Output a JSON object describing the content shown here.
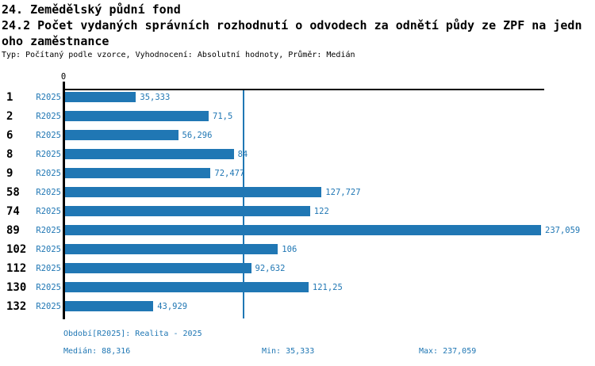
{
  "header": {
    "title_line1": "24. Zemědělský půdní fond",
    "title_line2": "24.2 Počet vydaných správních rozhodnutí o odvodech za odnětí půdy ze ZPF na jedn",
    "title_line3": "oho zaměstnance",
    "subtitle": "Typ: Počítaný podle vzorce, Vyhodnocení: Absolutní hodnoty, Průměr: Medián"
  },
  "chart_data": {
    "type": "bar",
    "orientation": "horizontal",
    "title": "24.2 Počet vydaných správních rozhodnutí o odvodech za odnětí půdy ze ZPF na jednoho zaměstnance",
    "categories": [
      "1",
      "2",
      "6",
      "8",
      "9",
      "58",
      "74",
      "89",
      "102",
      "112",
      "130",
      "132"
    ],
    "series_label": "R2025",
    "values": [
      35.333,
      71.5,
      56.296,
      84,
      72.477,
      127.727,
      122,
      237.059,
      106,
      92.632,
      121.25,
      43.929
    ],
    "value_labels": [
      "35,333",
      "71,5",
      "56,296",
      "84",
      "72,477",
      "127,727",
      "122",
      "237,059",
      "106",
      "92,632",
      "121,25",
      "43,929"
    ],
    "xlim": [
      0,
      237.059
    ],
    "zero_tick_label": "0",
    "median": 88.316,
    "grid": false,
    "legend": "none",
    "bar_color": "#2077b4",
    "median_line_color": "#2077b4"
  },
  "footer": {
    "period": "Období[R2025]: Realita - 2025",
    "median": "Medián: 88,316",
    "min": "Min: 35,333",
    "max": "Max: 237,059"
  }
}
